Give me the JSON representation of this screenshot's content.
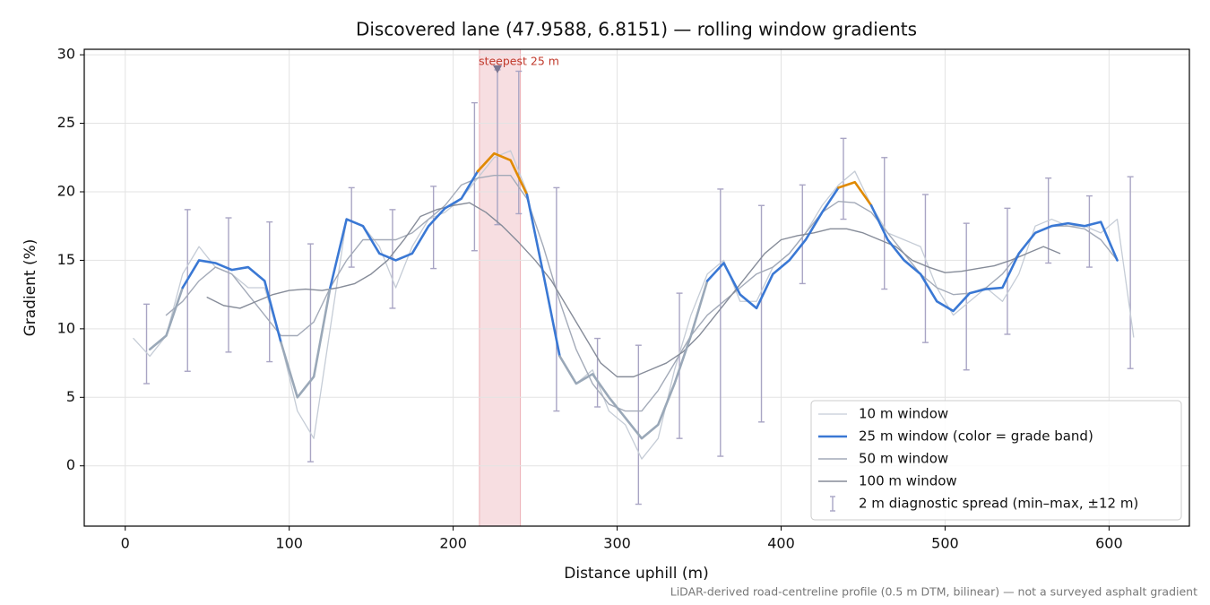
{
  "chart_data": {
    "type": "line",
    "title": "Discovered lane (47.9588, 6.8151) — rolling window gradients",
    "x_label": "Distance uphill (m)",
    "y_label": "Gradient (%)",
    "footnote": "LiDAR-derived road-centreline profile (0.5 m DTM, bilinear) — not a surveyed asphalt gradient",
    "xlim": [
      -25,
      649
    ],
    "ylim": [
      -4.4,
      30.4
    ],
    "xticks": [
      0,
      100,
      200,
      300,
      400,
      500,
      600
    ],
    "yticks": [
      0,
      5,
      10,
      15,
      20,
      25,
      30
    ],
    "grid": true,
    "legend": "lower right",
    "highlight": {
      "label": "steepest 25 m",
      "span": [
        216,
        241
      ],
      "x": 227,
      "y": 28.9,
      "color": "#e8a0a8"
    },
    "series": [
      {
        "name": "10 m window",
        "color": "#c5ccd6",
        "width": 1.3,
        "x": [
          5,
          15,
          25,
          35,
          45,
          55,
          65,
          75,
          85,
          95,
          105,
          115,
          125,
          135,
          145,
          155,
          165,
          175,
          185,
          195,
          205,
          215,
          225,
          235,
          245,
          255,
          265,
          275,
          285,
          295,
          305,
          315,
          325,
          335,
          345,
          355,
          365,
          375,
          385,
          395,
          405,
          415,
          425,
          435,
          445,
          455,
          465,
          475,
          485,
          495,
          505,
          515,
          525,
          535,
          545,
          555,
          565,
          575,
          585,
          595,
          605,
          615
        ],
        "values": [
          9.3,
          8.0,
          9.5,
          14,
          16,
          14.5,
          14,
          13,
          13,
          9,
          4,
          2,
          10,
          18,
          17.5,
          16,
          13,
          16,
          18,
          18.5,
          19.5,
          21,
          22.5,
          23,
          20,
          14,
          8,
          6,
          7,
          4,
          3,
          0.5,
          2,
          7,
          11,
          14,
          15,
          12,
          12,
          14.5,
          15.5,
          17,
          19,
          20.5,
          21.5,
          19,
          17,
          16.5,
          16,
          13,
          11,
          12,
          13,
          12,
          14,
          17.5,
          18,
          17.5,
          17.5,
          17,
          18,
          9.4
        ]
      },
      {
        "name": "25 m window (color = grade band)",
        "color": "#3a78d4",
        "width": 2.6,
        "x": [
          15,
          25,
          35,
          45,
          55,
          65,
          75,
          85,
          95,
          105,
          115,
          125,
          135,
          145,
          155,
          165,
          175,
          185,
          195,
          205,
          215,
          225,
          235,
          245,
          255,
          265,
          275,
          285,
          295,
          305,
          315,
          325,
          335,
          345,
          355,
          365,
          375,
          385,
          395,
          405,
          415,
          425,
          435,
          445,
          455,
          465,
          475,
          485,
          495,
          505,
          515,
          525,
          535,
          545,
          555,
          565,
          575,
          585,
          595,
          605
        ],
        "values": [
          8.5,
          9.5,
          13,
          15,
          14.8,
          14.3,
          14.5,
          13.5,
          9,
          5,
          6.5,
          13,
          18,
          17.5,
          15.5,
          15,
          15.5,
          17.5,
          18.8,
          19.5,
          21.5,
          22.8,
          22.3,
          19.8,
          14,
          8,
          6,
          6.7,
          5,
          3.5,
          2,
          3,
          6,
          9.5,
          13.5,
          14.8,
          12.5,
          11.5,
          14,
          15,
          16.5,
          18.5,
          20.3,
          20.7,
          19,
          16.5,
          15,
          14,
          12,
          11.3,
          12.6,
          12.9,
          13,
          15.5,
          17,
          17.5,
          17.7,
          17.5,
          17.8,
          15
        ],
        "colors": [
          "#9aa8b8",
          "#9aa8b8",
          "#3a78d4",
          "#3a78d4",
          "#3a78d4",
          "#3a78d4",
          "#3a78d4",
          "#3a78d4",
          "#9aa8b8",
          "#9aa8b8",
          "#9aa8b8",
          "#3a78d4",
          "#3a78d4",
          "#3a78d4",
          "#3a78d4",
          "#3a78d4",
          "#3a78d4",
          "#3a78d4",
          "#3a78d4",
          "#3a78d4",
          "#e08a00",
          "#e08a00",
          "#e08a00",
          "#3a78d4",
          "#3a78d4",
          "#9aa8b8",
          "#9aa8b8",
          "#9aa8b8",
          "#9aa8b8",
          "#9aa8b8",
          "#9aa8b8",
          "#9aa8b8",
          "#9aa8b8",
          "#9aa8b8",
          "#3a78d4",
          "#3a78d4",
          "#3a78d4",
          "#3a78d4",
          "#3a78d4",
          "#3a78d4",
          "#3a78d4",
          "#3a78d4",
          "#e08a00",
          "#e08a00",
          "#3a78d4",
          "#3a78d4",
          "#3a78d4",
          "#3a78d4",
          "#3a78d4",
          "#3a78d4",
          "#3a78d4",
          "#3a78d4",
          "#3a78d4",
          "#3a78d4",
          "#3a78d4",
          "#3a78d4",
          "#3a78d4",
          "#3a78d4",
          "#3a78d4",
          "#3a78d4"
        ]
      },
      {
        "name": "50 m window",
        "color": "#a3aab8",
        "width": 1.4,
        "x": [
          25,
          35,
          45,
          55,
          65,
          75,
          85,
          95,
          105,
          115,
          125,
          135,
          145,
          155,
          165,
          175,
          185,
          195,
          205,
          215,
          225,
          235,
          245,
          255,
          265,
          275,
          285,
          295,
          305,
          315,
          325,
          335,
          345,
          355,
          365,
          375,
          385,
          395,
          405,
          415,
          425,
          435,
          445,
          455,
          465,
          475,
          485,
          495,
          505,
          515,
          525,
          535,
          545,
          555,
          565,
          575,
          585,
          595,
          605
        ],
        "values": [
          11,
          12,
          13.5,
          14.5,
          14,
          12.5,
          11,
          9.5,
          9.5,
          10.5,
          13,
          15,
          16.5,
          16.5,
          16.5,
          17,
          18,
          19,
          20.5,
          21,
          21.2,
          21.2,
          19.5,
          16,
          12,
          8.5,
          6,
          4.5,
          4,
          4,
          5.5,
          7.5,
          9.5,
          11,
          12,
          13,
          14,
          14.5,
          15.5,
          17,
          18.5,
          19.3,
          19.2,
          18.5,
          17,
          15.5,
          14,
          13,
          12.5,
          12.6,
          13,
          14,
          15.5,
          17,
          17.5,
          17.5,
          17.3,
          16.5,
          15
        ]
      },
      {
        "name": "100 m window",
        "color": "#868c99",
        "width": 1.4,
        "x": [
          50,
          60,
          70,
          80,
          90,
          100,
          110,
          120,
          130,
          140,
          150,
          160,
          170,
          180,
          190,
          200,
          210,
          220,
          230,
          240,
          250,
          260,
          270,
          280,
          290,
          300,
          310,
          320,
          330,
          340,
          350,
          360,
          370,
          380,
          390,
          400,
          410,
          420,
          430,
          440,
          450,
          460,
          470,
          480,
          490,
          500,
          510,
          520,
          530,
          540,
          550,
          560,
          570
        ],
        "values": [
          12.3,
          11.7,
          11.5,
          12,
          12.5,
          12.8,
          12.9,
          12.8,
          13,
          13.3,
          14,
          15,
          16.5,
          18.2,
          18.7,
          19,
          19.2,
          18.5,
          17.5,
          16.3,
          15,
          13.5,
          11.5,
          9.5,
          7.5,
          6.5,
          6.5,
          7,
          7.5,
          8.3,
          9.5,
          11,
          12.5,
          14,
          15.5,
          16.5,
          16.8,
          17,
          17.3,
          17.3,
          17,
          16.5,
          16,
          15,
          14.5,
          14.1,
          14.2,
          14.4,
          14.6,
          15,
          15.5,
          16,
          15.5
        ]
      }
    ],
    "error_bars": {
      "name": "2 m diagnostic spread (min–max, ±12 m)",
      "color": "#a9a5c4",
      "x": [
        13,
        38,
        63,
        88,
        113,
        138,
        163,
        188,
        213,
        227,
        240,
        263,
        288,
        313,
        338,
        363,
        388,
        413,
        438,
        463,
        488,
        513,
        538,
        563,
        588,
        613
      ],
      "low": [
        6,
        6.9,
        8.3,
        7.6,
        0.3,
        14.5,
        11.5,
        14.4,
        15.7,
        17.6,
        18.4,
        4,
        4.3,
        -2.8,
        2,
        0.7,
        3.2,
        13.3,
        18,
        12.9,
        9,
        7,
        9.6,
        14.8,
        14.5,
        7.1
      ],
      "high": [
        11.8,
        18.7,
        18.1,
        17.8,
        16.2,
        20.3,
        18.7,
        20.4,
        26.5,
        28.9,
        28.8,
        20.3,
        9.3,
        8.8,
        12.6,
        20.2,
        19,
        20.5,
        23.9,
        22.5,
        19.8,
        17.7,
        18.8,
        21,
        19.7,
        21.1
      ]
    }
  }
}
